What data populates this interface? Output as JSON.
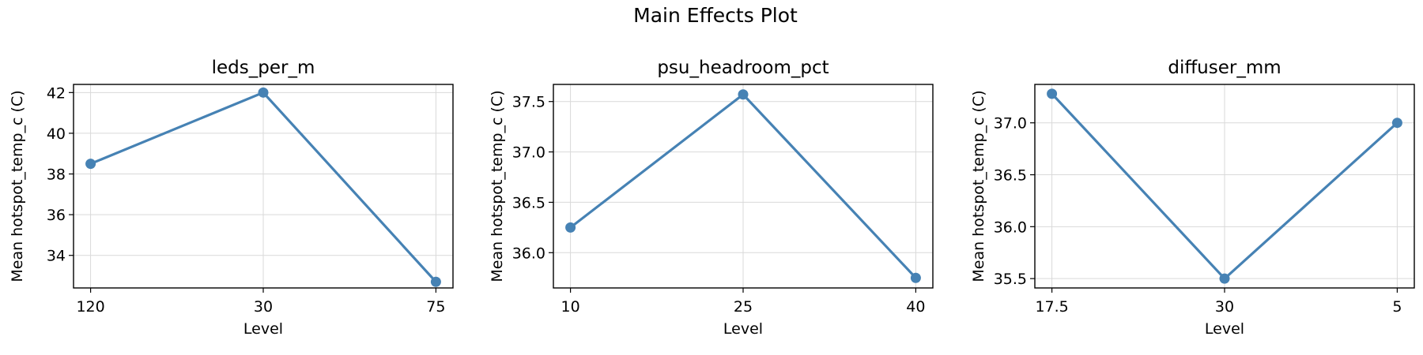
{
  "figure": {
    "title": "Main Effects Plot"
  },
  "colors": {
    "series": "#4682b4",
    "grid": "#d9d9d9"
  },
  "chart_data": [
    {
      "type": "line",
      "title": "leds_per_m",
      "xlabel": "Level",
      "ylabel": "Mean hotspot_temp_c (C)",
      "categories": [
        "120",
        "30",
        "75"
      ],
      "values": [
        38.5,
        42.0,
        32.7
      ],
      "ylim": [
        32.4,
        42.4
      ],
      "yticks": [
        34,
        36,
        38,
        40,
        42
      ],
      "ytick_labels": [
        "34",
        "36",
        "38",
        "40",
        "42"
      ],
      "grid": true
    },
    {
      "type": "line",
      "title": "psu_headroom_pct",
      "xlabel": "Level",
      "ylabel": "Mean hotspot_temp_c (C)",
      "categories": [
        "10",
        "25",
        "40"
      ],
      "values": [
        36.25,
        37.57,
        35.75
      ],
      "ylim": [
        35.65,
        37.67
      ],
      "yticks": [
        36.0,
        36.5,
        37.0,
        37.5
      ],
      "ytick_labels": [
        "36.0",
        "36.5",
        "37.0",
        "37.5"
      ],
      "grid": true
    },
    {
      "type": "line",
      "title": "diffuser_mm",
      "xlabel": "Level",
      "ylabel": "Mean hotspot_temp_c (C)",
      "categories": [
        "17.5",
        "30",
        "5"
      ],
      "values": [
        37.28,
        35.5,
        37.0
      ],
      "ylim": [
        35.41,
        37.37
      ],
      "yticks": [
        35.5,
        36.0,
        36.5,
        37.0
      ],
      "ytick_labels": [
        "35.5",
        "36.0",
        "36.5",
        "37.0"
      ],
      "grid": true
    }
  ]
}
